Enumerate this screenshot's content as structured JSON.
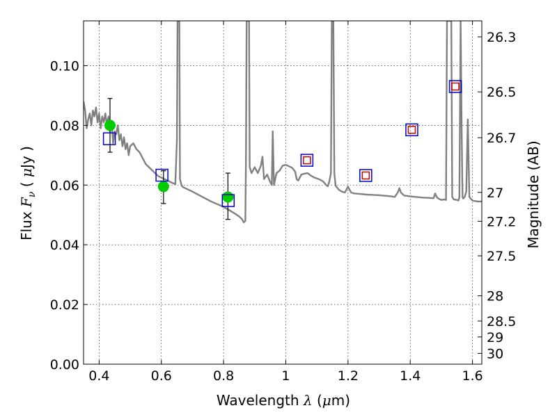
{
  "chart_data": {
    "type": "scatter",
    "xlabel": {
      "prefix": "Wavelength",
      "symbol": "λ",
      "open": "(",
      "unit_prefix": "μ",
      "unit": "m)"
    },
    "ylabel": {
      "prefix": "Flux",
      "symbol": "F",
      "subscript": "ν",
      "open": "(",
      "unit_prefix": "μ",
      "unit": "Jy )"
    },
    "y2label": "Magnitude (AB)",
    "xlim": [
      0.35,
      1.63
    ],
    "ylim": [
      0.0,
      0.115
    ],
    "grid": true,
    "x_ticks": [
      {
        "value": 0.4,
        "label": "0.4"
      },
      {
        "value": 0.6,
        "label": "0.6"
      },
      {
        "value": 0.8,
        "label": "0.8"
      },
      {
        "value": 1.0,
        "label": "1"
      },
      {
        "value": 1.2,
        "label": "1.2"
      },
      {
        "value": 1.4,
        "label": "1.4"
      },
      {
        "value": 1.6,
        "label": "1.6"
      }
    ],
    "y_ticks": [
      {
        "value": 0.0,
        "label": "0.00"
      },
      {
        "value": 0.02,
        "label": "0.02"
      },
      {
        "value": 0.04,
        "label": "0.04"
      },
      {
        "value": 0.06,
        "label": "0.06"
      },
      {
        "value": 0.08,
        "label": "0.08"
      },
      {
        "value": 0.1,
        "label": "0.10"
      }
    ],
    "y2_ticks": [
      {
        "mag": 26.3,
        "label": "26.3"
      },
      {
        "mag": 26.5,
        "label": "26.5"
      },
      {
        "mag": 26.7,
        "label": "26.7"
      },
      {
        "mag": 27.0,
        "label": "27"
      },
      {
        "mag": 27.2,
        "label": "27.2"
      },
      {
        "mag": 27.5,
        "label": "27.5"
      },
      {
        "mag": 28.0,
        "label": "28"
      },
      {
        "mag": 28.5,
        "label": "28.5"
      },
      {
        "mag": 29.0,
        "label": "29"
      },
      {
        "mag": 30.0,
        "label": "30"
      }
    ],
    "series": [
      {
        "name": "model-spectrum",
        "kind": "line",
        "color": "#808080",
        "points": [
          [
            0.35,
            0.088
          ],
          [
            0.355,
            0.085
          ],
          [
            0.36,
            0.079
          ],
          [
            0.365,
            0.082
          ],
          [
            0.37,
            0.084
          ],
          [
            0.375,
            0.08
          ],
          [
            0.38,
            0.085
          ],
          [
            0.385,
            0.083
          ],
          [
            0.39,
            0.086
          ],
          [
            0.395,
            0.081
          ],
          [
            0.4,
            0.084
          ],
          [
            0.405,
            0.079
          ],
          [
            0.41,
            0.083
          ],
          [
            0.415,
            0.081
          ],
          [
            0.42,
            0.084
          ],
          [
            0.425,
            0.08
          ],
          [
            0.43,
            0.083
          ],
          [
            0.435,
            0.078
          ],
          [
            0.44,
            0.081
          ],
          [
            0.445,
            0.074
          ],
          [
            0.45,
            0.078
          ],
          [
            0.455,
            0.077
          ],
          [
            0.46,
            0.08
          ],
          [
            0.465,
            0.075
          ],
          [
            0.47,
            0.077
          ],
          [
            0.475,
            0.073
          ],
          [
            0.48,
            0.076
          ],
          [
            0.485,
            0.072
          ],
          [
            0.49,
            0.074
          ],
          [
            0.495,
            0.07
          ],
          [
            0.5,
            0.073
          ],
          [
            0.51,
            0.074
          ],
          [
            0.52,
            0.072
          ],
          [
            0.53,
            0.071
          ],
          [
            0.54,
            0.069
          ],
          [
            0.55,
            0.067
          ],
          [
            0.56,
            0.066
          ],
          [
            0.57,
            0.065
          ],
          [
            0.58,
            0.064
          ],
          [
            0.59,
            0.063
          ],
          [
            0.6,
            0.0625
          ],
          [
            0.61,
            0.062
          ],
          [
            0.62,
            0.0615
          ],
          [
            0.63,
            0.061
          ],
          [
            0.64,
            0.0605
          ],
          [
            0.645,
            0.0603
          ],
          [
            0.65,
            0.075
          ],
          [
            0.652,
            0.115
          ],
          [
            0.658,
            0.115
          ],
          [
            0.66,
            0.062
          ],
          [
            0.665,
            0.0598
          ],
          [
            0.67,
            0.0593
          ],
          [
            0.68,
            0.0588
          ],
          [
            0.7,
            0.0578
          ],
          [
            0.72,
            0.0567
          ],
          [
            0.74,
            0.0556
          ],
          [
            0.76,
            0.0545
          ],
          [
            0.78,
            0.0536
          ],
          [
            0.8,
            0.0527
          ],
          [
            0.82,
            0.0515
          ],
          [
            0.84,
            0.0502
          ],
          [
            0.85,
            0.0495
          ],
          [
            0.86,
            0.0485
          ],
          [
            0.865,
            0.0475
          ],
          [
            0.87,
            0.048
          ],
          [
            0.872,
            0.07
          ],
          [
            0.874,
            0.115
          ],
          [
            0.882,
            0.115
          ],
          [
            0.884,
            0.066
          ],
          [
            0.89,
            0.064
          ],
          [
            0.9,
            0.066
          ],
          [
            0.91,
            0.064
          ],
          [
            0.92,
            0.0665
          ],
          [
            0.925,
            0.0695
          ],
          [
            0.93,
            0.062
          ],
          [
            0.94,
            0.0635
          ],
          [
            0.95,
            0.061
          ],
          [
            0.955,
            0.06
          ],
          [
            0.958,
            0.078
          ],
          [
            0.962,
            0.06
          ],
          [
            0.97,
            0.064
          ],
          [
            0.98,
            0.0648
          ],
          [
            0.99,
            0.0665
          ],
          [
            1.0,
            0.0668
          ],
          [
            1.01,
            0.0663
          ],
          [
            1.02,
            0.0658
          ],
          [
            1.03,
            0.0645
          ],
          [
            1.035,
            0.062
          ],
          [
            1.04,
            0.0615
          ],
          [
            1.05,
            0.0635
          ],
          [
            1.06,
            0.0638
          ],
          [
            1.07,
            0.064
          ],
          [
            1.08,
            0.0632
          ],
          [
            1.09,
            0.0626
          ],
          [
            1.1,
            0.0622
          ],
          [
            1.11,
            0.0618
          ],
          [
            1.12,
            0.0612
          ],
          [
            1.13,
            0.06
          ],
          [
            1.135,
            0.0596
          ],
          [
            1.14,
            0.0612
          ],
          [
            1.145,
            0.064
          ],
          [
            1.148,
            0.115
          ],
          [
            1.153,
            0.115
          ],
          [
            1.156,
            0.064
          ],
          [
            1.16,
            0.0598
          ],
          [
            1.17,
            0.0585
          ],
          [
            1.18,
            0.0578
          ],
          [
            1.19,
            0.0575
          ],
          [
            1.2,
            0.0595
          ],
          [
            1.21,
            0.0575
          ],
          [
            1.22,
            0.0572
          ],
          [
            1.24,
            0.057
          ],
          [
            1.26,
            0.0568
          ],
          [
            1.28,
            0.0567
          ],
          [
            1.3,
            0.0566
          ],
          [
            1.32,
            0.0564
          ],
          [
            1.34,
            0.0562
          ],
          [
            1.35,
            0.056
          ],
          [
            1.36,
            0.0575
          ],
          [
            1.365,
            0.059
          ],
          [
            1.37,
            0.0575
          ],
          [
            1.38,
            0.0565
          ],
          [
            1.4,
            0.0562
          ],
          [
            1.42,
            0.056
          ],
          [
            1.44,
            0.0558
          ],
          [
            1.46,
            0.0557
          ],
          [
            1.475,
            0.0556
          ],
          [
            1.48,
            0.0572
          ],
          [
            1.485,
            0.056
          ],
          [
            1.49,
            0.0555
          ],
          [
            1.5,
            0.055
          ],
          [
            1.51,
            0.0552
          ],
          [
            1.515,
            0.055
          ],
          [
            1.518,
            0.115
          ],
          [
            1.532,
            0.115
          ],
          [
            1.535,
            0.056
          ],
          [
            1.54,
            0.0552
          ],
          [
            1.55,
            0.055
          ],
          [
            1.555,
            0.0548
          ],
          [
            1.558,
            0.056
          ],
          [
            1.562,
            0.115
          ],
          [
            1.565,
            0.08
          ],
          [
            1.568,
            0.056
          ],
          [
            1.57,
            0.0555
          ],
          [
            1.575,
            0.056
          ],
          [
            1.58,
            0.0578
          ],
          [
            1.585,
            0.082
          ],
          [
            1.59,
            0.056
          ],
          [
            1.6,
            0.0548
          ],
          [
            1.61,
            0.0546
          ],
          [
            1.62,
            0.0545
          ],
          [
            1.63,
            0.0545
          ]
        ]
      },
      {
        "name": "observed-flux",
        "kind": "points-with-errors",
        "color": "#00cc00",
        "points": [
          {
            "x": 0.435,
            "y": 0.08,
            "ylo": 0.071,
            "yhi": 0.089
          },
          {
            "x": 0.607,
            "y": 0.0595,
            "ylo": 0.0538,
            "yhi": 0.0648
          },
          {
            "x": 0.814,
            "y": 0.056,
            "ylo": 0.0485,
            "yhi": 0.064
          }
        ]
      },
      {
        "name": "model-flux-blue",
        "kind": "open-square",
        "color": "#0000cc",
        "points": [
          {
            "x": 0.433,
            "y": 0.0755
          },
          {
            "x": 0.602,
            "y": 0.0633
          },
          {
            "x": 0.815,
            "y": 0.0548
          },
          {
            "x": 1.068,
            "y": 0.0683
          },
          {
            "x": 1.257,
            "y": 0.0632
          },
          {
            "x": 1.405,
            "y": 0.0785
          },
          {
            "x": 1.545,
            "y": 0.093
          }
        ]
      },
      {
        "name": "model-flux-red",
        "kind": "open-square",
        "color": "#cc0000",
        "points": [
          {
            "x": 1.068,
            "y": 0.0683
          },
          {
            "x": 1.257,
            "y": 0.0632
          },
          {
            "x": 1.405,
            "y": 0.0785
          },
          {
            "x": 1.545,
            "y": 0.093
          }
        ]
      }
    ]
  }
}
